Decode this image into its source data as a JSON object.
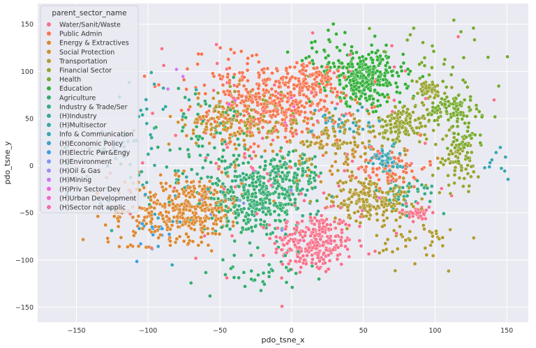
{
  "chart_data": {
    "type": "scatter",
    "title": "",
    "xlabel": "pdo_tsne_x",
    "ylabel": "pdo_tsne_y",
    "xlim": [
      -177,
      165
    ],
    "ylim": [
      -166,
      172
    ],
    "xticks": [
      -150,
      -100,
      -50,
      0,
      50,
      100,
      150
    ],
    "yticks": [
      -150,
      -100,
      -50,
      0,
      50,
      100,
      150
    ],
    "grid": true,
    "legend": {
      "title": "parent_sector_name",
      "placement": "top-left"
    },
    "note_points": "Thousands of points; series given as approximate clusters in data units (center, spread, count)",
    "series": [
      {
        "name": "Water/Sanit/Waste",
        "color": "#f77189",
        "clusters": [
          {
            "center": [
              15,
              -82
            ],
            "spread": [
              14,
              16
            ],
            "count": 260
          },
          {
            "center": [
              88,
              -50
            ],
            "spread": [
              5,
              6
            ],
            "count": 40
          },
          {
            "center": [
              0,
              20
            ],
            "spread": [
              60,
              60
            ],
            "count": 120
          }
        ]
      },
      {
        "name": "Public Admin",
        "color": "#f7754f",
        "clusters": [
          {
            "center": [
              -8,
              65
            ],
            "spread": [
              22,
              18
            ],
            "count": 380
          },
          {
            "center": [
              15,
              95
            ],
            "spread": [
              10,
              8
            ],
            "count": 60
          },
          {
            "center": [
              70,
              -2
            ],
            "spread": [
              12,
              10
            ],
            "count": 70
          },
          {
            "center": [
              -40,
              90
            ],
            "spread": [
              20,
              20
            ],
            "count": 60
          }
        ]
      },
      {
        "name": "Energy & Extractives",
        "color": "#dc8932",
        "clusters": [
          {
            "center": [
              -70,
              -45
            ],
            "spread": [
              18,
              17
            ],
            "count": 320
          },
          {
            "center": [
              -110,
              -55
            ],
            "spread": [
              18,
              20
            ],
            "count": 60
          },
          {
            "center": [
              -40,
              40
            ],
            "spread": [
              20,
              20
            ],
            "count": 60
          }
        ]
      },
      {
        "name": "Social Protection",
        "color": "#cd9131",
        "clusters": [
          {
            "center": [
              -50,
              45
            ],
            "spread": [
              12,
              12
            ],
            "count": 80
          },
          {
            "center": [
              30,
              10
            ],
            "spread": [
              25,
              25
            ],
            "count": 70
          }
        ]
      },
      {
        "name": "Transportation",
        "color": "#b09b31",
        "clusters": [
          {
            "center": [
              55,
              -35
            ],
            "spread": [
              14,
              12
            ],
            "count": 200
          },
          {
            "center": [
              30,
              30
            ],
            "spread": [
              15,
              15
            ],
            "count": 90
          },
          {
            "center": [
              90,
              -80
            ],
            "spread": [
              15,
              12
            ],
            "count": 40
          }
        ]
      },
      {
        "name": "Financial Sector",
        "color": "#97a431",
        "clusters": [
          {
            "center": [
              78,
              45
            ],
            "spread": [
              9,
              10
            ],
            "count": 130
          },
          {
            "center": [
              95,
              80
            ],
            "spread": [
              6,
              5
            ],
            "count": 50
          },
          {
            "center": [
              115,
              5
            ],
            "spread": [
              8,
              15
            ],
            "count": 70
          },
          {
            "center": [
              -20,
              55
            ],
            "spread": [
              20,
              15
            ],
            "count": 60
          }
        ]
      },
      {
        "name": "Health",
        "color": "#77ab31",
        "clusters": [
          {
            "center": [
              112,
              60
            ],
            "spread": [
              8,
              8
            ],
            "count": 90
          },
          {
            "center": [
              120,
              30
            ],
            "spread": [
              6,
              10
            ],
            "count": 40
          },
          {
            "center": [
              100,
              100
            ],
            "spread": [
              30,
              30
            ],
            "count": 40
          }
        ]
      },
      {
        "name": "Education",
        "color": "#33b039",
        "clusters": [
          {
            "center": [
              52,
              92
            ],
            "spread": [
              13,
              14
            ],
            "count": 300
          },
          {
            "center": [
              30,
              120
            ],
            "spread": [
              15,
              15
            ],
            "count": 40
          }
        ]
      },
      {
        "name": "Agriculture",
        "color": "#35ad6f",
        "clusters": [
          {
            "center": [
              -25,
              -40
            ],
            "spread": [
              18,
              15
            ],
            "count": 260
          },
          {
            "center": [
              -5,
              -10
            ],
            "spread": [
              14,
              12
            ],
            "count": 120
          },
          {
            "center": [
              -60,
              30
            ],
            "spread": [
              22,
              25
            ],
            "count": 80
          },
          {
            "center": [
              -20,
              -115
            ],
            "spread": [
              15,
              10
            ],
            "count": 40
          }
        ]
      },
      {
        "name": "Industry & Trade/Ser",
        "color": "#36ac85",
        "clusters": [
          {
            "center": [
              -30,
              -25
            ],
            "spread": [
              25,
              20
            ],
            "count": 90
          },
          {
            "center": [
              80,
              -30
            ],
            "spread": [
              10,
              10
            ],
            "count": 40
          }
        ]
      },
      {
        "name": "(H)Industry",
        "color": "#37aa97",
        "clusters": [
          {
            "center": [
              -120,
              10
            ],
            "spread": [
              15,
              25
            ],
            "count": 30
          }
        ]
      },
      {
        "name": "(H)Multisector",
        "color": "#38a9a4",
        "clusters": [
          {
            "center": [
              -100,
              40
            ],
            "spread": [
              20,
              30
            ],
            "count": 30
          }
        ]
      },
      {
        "name": "Info & Communication",
        "color": "#39a7b2",
        "clusters": [
          {
            "center": [
              65,
              8
            ],
            "spread": [
              6,
              8
            ],
            "count": 60
          },
          {
            "center": [
              35,
              45
            ],
            "spread": [
              10,
              10
            ],
            "count": 30
          },
          {
            "center": [
              145,
              5
            ],
            "spread": [
              5,
              10
            ],
            "count": 10
          }
        ]
      },
      {
        "name": "(H)Economic Policy",
        "color": "#3ba3c3",
        "clusters": [
          {
            "center": [
              -90,
              -60
            ],
            "spread": [
              20,
              20
            ],
            "count": 15
          }
        ]
      },
      {
        "name": "(H)Electric Pwr&Engy",
        "color": "#3d9ee6",
        "clusters": [
          {
            "center": [
              -95,
              -75
            ],
            "spread": [
              10,
              10
            ],
            "count": 10
          }
        ]
      },
      {
        "name": "(H)Environment",
        "color": "#8197f4",
        "clusters": [
          {
            "center": [
              -30,
              -35
            ],
            "spread": [
              20,
              20
            ],
            "count": 6
          }
        ]
      },
      {
        "name": "(H)Oil & Gas",
        "color": "#a48cf4",
        "clusters": [
          {
            "center": [
              -60,
              -30
            ],
            "spread": [
              10,
              10
            ],
            "count": 3
          }
        ]
      },
      {
        "name": "(H)Mining",
        "color": "#cc7af4",
        "clusters": [
          {
            "center": [
              -80,
              90
            ],
            "spread": [
              5,
              5
            ],
            "count": 3
          }
        ]
      },
      {
        "name": "(H)Priv Sector Dev",
        "color": "#f45fe3",
        "clusters": [
          {
            "center": [
              -30,
              60
            ],
            "spread": [
              20,
              20
            ],
            "count": 4
          }
        ]
      },
      {
        "name": "(H)Urban Development",
        "color": "#f565cc",
        "clusters": [
          {
            "center": [
              0,
              0
            ],
            "spread": [
              30,
              30
            ],
            "count": 4
          }
        ]
      },
      {
        "name": "(H)Sector not applic",
        "color": "#f66bad",
        "clusters": [
          {
            "center": [
              10,
              -60
            ],
            "spread": [
              20,
              20
            ],
            "count": 6
          }
        ]
      }
    ]
  }
}
